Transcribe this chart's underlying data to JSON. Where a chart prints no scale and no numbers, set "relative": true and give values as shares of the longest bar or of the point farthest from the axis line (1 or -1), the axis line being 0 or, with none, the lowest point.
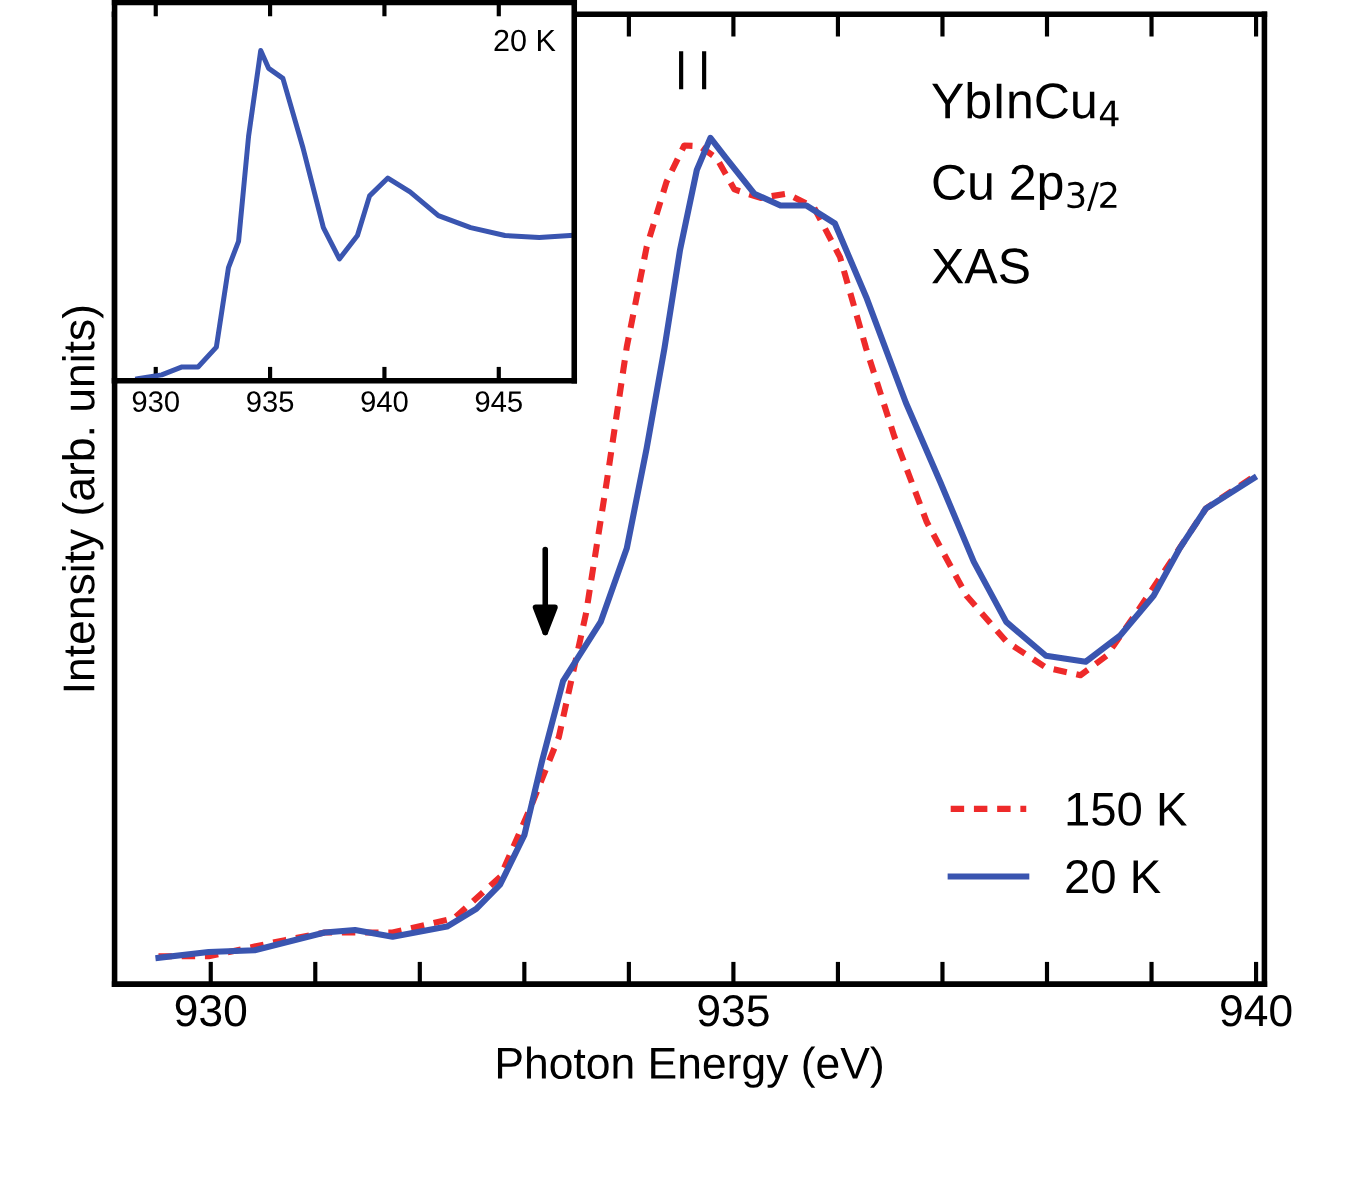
{
  "chart_data": [
    {
      "type": "line",
      "relative": true,
      "xlabel": "Photon Energy (eV)",
      "ylabel": "Intensity (arb. units)",
      "xlim": [
        929.08,
        940.08
      ],
      "xticks": [
        930,
        {
          "value": 931,
          "label": null
        },
        {
          "value": 932,
          "label": null
        },
        {
          "value": 933,
          "label": null
        },
        {
          "value": 934,
          "label": null
        },
        935,
        {
          "value": 936,
          "label": null
        },
        {
          "value": 937,
          "label": null
        },
        {
          "value": 938,
          "label": null
        },
        {
          "value": 939,
          "label": null
        },
        940
      ],
      "legend": "bottom right",
      "tick_labels": "x",
      "annotations": [
        "YbInCu$_{4}$",
        "Cu 2p$_{3/2}$",
        "XAS"
      ],
      "series": [
        {
          "name": "150 K",
          "color": "#ee2a2a",
          "line_style": "dashed",
          "x": [
            929.5,
            929.98,
            930.71,
            931.09,
            931.74,
            932.33,
            932.77,
            933.06,
            933.33,
            933.59,
            933.79,
            933.98,
            934.17,
            934.36,
            934.53,
            934.68,
            934.84,
            935.01,
            935.26,
            935.51,
            935.77,
            936.02,
            936.27,
            936.54,
            936.85,
            937.23,
            937.61,
            937.99,
            938.32,
            938.57,
            938.89,
            939.22,
            939.52,
            939.98
          ],
          "values": [
            0.033,
            0.033,
            0.052,
            0.061,
            0.061,
            0.078,
            0.127,
            0.209,
            0.292,
            0.438,
            0.595,
            0.753,
            0.871,
            0.948,
            0.991,
            0.99,
            0.976,
            0.939,
            0.929,
            0.934,
            0.918,
            0.859,
            0.751,
            0.647,
            0.546,
            0.459,
            0.405,
            0.374,
            0.365,
            0.388,
            0.445,
            0.506,
            0.562,
            0.6
          ]
        },
        {
          "name": "20 K",
          "color": "#3a55b0",
          "line_style": "solid",
          "x": [
            929.5,
            929.98,
            930.42,
            931.09,
            931.38,
            931.74,
            932.26,
            932.54,
            932.77,
            933.0,
            933.17,
            933.37,
            933.73,
            933.98,
            934.17,
            934.34,
            934.49,
            934.65,
            934.78,
            934.93,
            935.2,
            935.45,
            935.7,
            935.97,
            936.27,
            936.65,
            936.98,
            937.3,
            937.61,
            937.99,
            938.37,
            938.7,
            939.02,
            939.27,
            939.52,
            939.98
          ],
          "values": [
            0.031,
            0.038,
            0.04,
            0.061,
            0.064,
            0.056,
            0.068,
            0.089,
            0.118,
            0.176,
            0.264,
            0.358,
            0.428,
            0.515,
            0.633,
            0.751,
            0.868,
            0.962,
            1.0,
            0.976,
            0.934,
            0.92,
            0.92,
            0.899,
            0.812,
            0.687,
            0.593,
            0.499,
            0.428,
            0.388,
            0.381,
            0.412,
            0.459,
            0.515,
            0.562,
            0.598
          ]
        }
      ]
    },
    {
      "type": "line",
      "relative": true,
      "xlim": [
        928.2,
        948.3
      ],
      "xticks": [
        930,
        935,
        940,
        945
      ],
      "tick_labels": "x",
      "annotations": [
        "20 K"
      ],
      "series": [
        {
          "color": "#3a55b0",
          "line_style": "solid",
          "x": [
            929.21,
            930.26,
            931.15,
            931.85,
            932.65,
            933.18,
            933.62,
            934.06,
            934.59,
            934.94,
            935.56,
            936.44,
            937.33,
            938.03,
            938.82,
            939.35,
            940.15,
            941.12,
            942.36,
            943.77,
            945.27,
            946.77,
            948.18
          ],
          "values": [
            0.006,
            0.018,
            0.042,
            0.042,
            0.102,
            0.343,
            0.422,
            0.741,
            1.0,
            0.946,
            0.916,
            0.705,
            0.464,
            0.369,
            0.44,
            0.56,
            0.614,
            0.572,
            0.5,
            0.464,
            0.44,
            0.434,
            0.44
          ]
        }
      ]
    }
  ]
}
